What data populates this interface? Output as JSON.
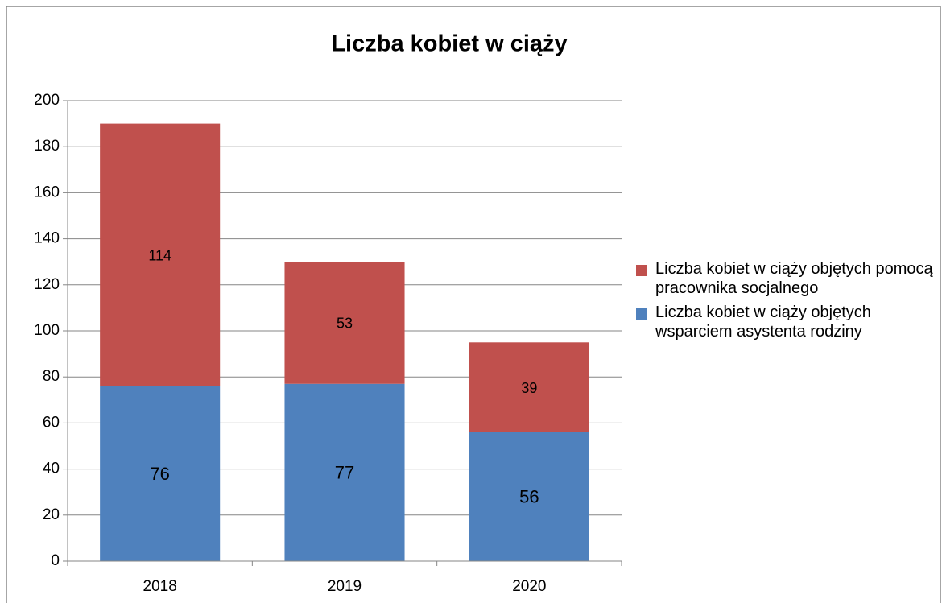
{
  "chart_data": {
    "type": "stacked_bar",
    "title": "Liczba kobiet w ciąży",
    "categories": [
      "2018",
      "2019",
      "2020"
    ],
    "series": [
      {
        "name": "Liczba kobiet w ciąży objętych wsparciem asystenta rodziny",
        "color": "#4f81bd",
        "values": [
          76,
          77,
          56
        ]
      },
      {
        "name": "Liczba kobiet w ciąży objętych pomocą pracownika socjalnego",
        "color": "#c0504d",
        "values": [
          114,
          53,
          39
        ]
      }
    ],
    "ylim": [
      0,
      200
    ],
    "yticks": [
      0,
      20,
      40,
      60,
      80,
      100,
      120,
      140,
      160,
      180,
      200
    ],
    "grid": true,
    "legend": "right"
  }
}
